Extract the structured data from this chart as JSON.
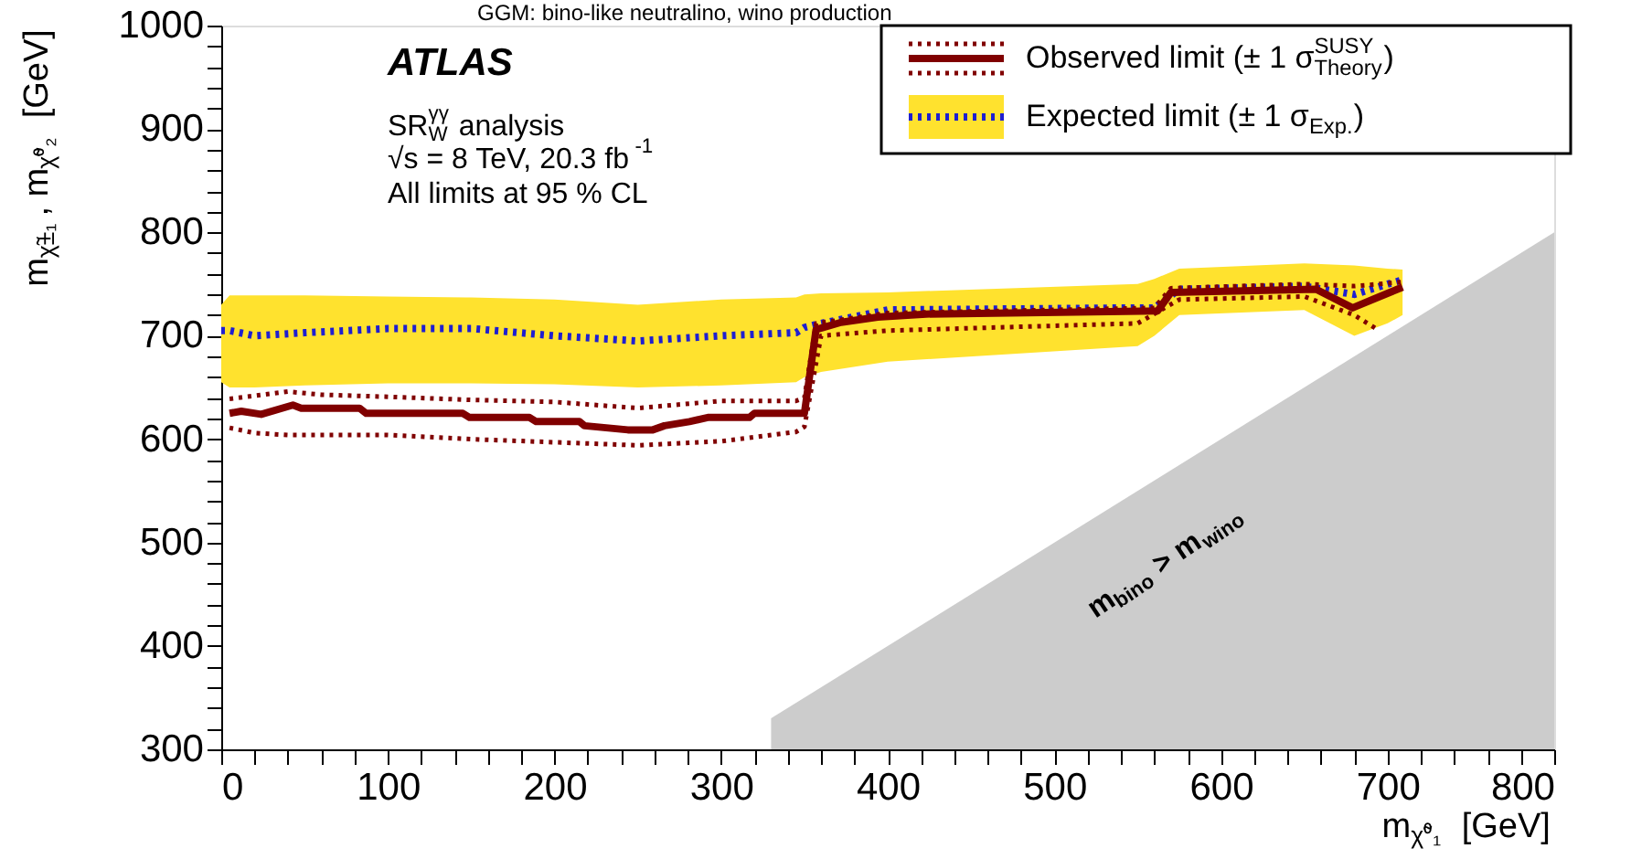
{
  "chart_data": {
    "type": "line",
    "title": "GGM: bino-like neutralino, wino production",
    "xlabel": "m$_{χ̃⁰₁}$ [GeV]",
    "ylabel": "m$_{χ̃±₁}$, m$_{χ̃⁰₂}$ [GeV]",
    "annotations": [
      "ATLAS",
      "SR$_{W}$$^{γγ}$ analysis",
      "√s = 8 TeV, 20.3 fb$^{-1}$",
      "All limits at 95 % CL",
      "m$_{bino}$ > m$_{wino}$"
    ],
    "xlim": [
      0,
      800
    ],
    "ylim": [
      300,
      1000
    ],
    "xticks": [
      0,
      {
        "value": 20,
        "label": null
      },
      {
        "value": 40,
        "label": null
      },
      {
        "value": 60,
        "label": null
      },
      {
        "value": 80,
        "label": null
      },
      100,
      {
        "value": 120,
        "label": null
      },
      {
        "value": 140,
        "label": null
      },
      {
        "value": 160,
        "label": null
      },
      {
        "value": 180,
        "label": null
      },
      200,
      {
        "value": 220,
        "label": null
      },
      {
        "value": 240,
        "label": null
      },
      {
        "value": 260,
        "label": null
      },
      {
        "value": 280,
        "label": null
      },
      300,
      {
        "value": 320,
        "label": null
      },
      {
        "value": 340,
        "label": null
      },
      {
        "value": 360,
        "label": null
      },
      {
        "value": 380,
        "label": null
      },
      400,
      {
        "value": 420,
        "label": null
      },
      {
        "value": 440,
        "label": null
      },
      {
        "value": 460,
        "label": null
      },
      {
        "value": 480,
        "label": null
      },
      500,
      {
        "value": 520,
        "label": null
      },
      {
        "value": 540,
        "label": null
      },
      {
        "value": 560,
        "label": null
      },
      {
        "value": 580,
        "label": null
      },
      600,
      {
        "value": 620,
        "label": null
      },
      {
        "value": 640,
        "label": null
      },
      {
        "value": 660,
        "label": null
      },
      {
        "value": 680,
        "label": null
      },
      700,
      {
        "value": 720,
        "label": null
      },
      {
        "value": 740,
        "label": null
      },
      {
        "value": 760,
        "label": null
      },
      {
        "value": 780,
        "label": null
      },
      800
    ],
    "yticks": [
      300,
      {
        "value": 320,
        "label": null
      },
      {
        "value": 340,
        "label": null
      },
      {
        "value": 360,
        "label": null
      },
      {
        "value": 380,
        "label": null
      },
      400,
      {
        "value": 420,
        "label": null
      },
      {
        "value": 440,
        "label": null
      },
      {
        "value": 460,
        "label": null
      },
      {
        "value": 480,
        "label": null
      },
      500,
      {
        "value": 520,
        "label": null
      },
      {
        "value": 540,
        "label": null
      },
      {
        "value": 560,
        "label": null
      },
      {
        "value": 580,
        "label": null
      },
      600,
      {
        "value": 620,
        "label": null
      },
      {
        "value": 640,
        "label": null
      },
      {
        "value": 660,
        "label": null
      },
      {
        "value": 680,
        "label": null
      },
      700,
      {
        "value": 720,
        "label": null
      },
      {
        "value": 740,
        "label": null
      },
      {
        "value": 760,
        "label": null
      },
      {
        "value": 780,
        "label": null
      },
      800,
      {
        "value": 820,
        "label": null
      },
      {
        "value": 840,
        "label": null
      },
      {
        "value": 860,
        "label": null
      },
      {
        "value": 880,
        "label": null
      },
      900,
      {
        "value": 920,
        "label": null
      },
      {
        "value": 940,
        "label": null
      },
      {
        "value": 960,
        "label": null
      },
      {
        "value": 980,
        "label": null
      },
      1000
    ],
    "grid": false,
    "legend": "top right",
    "series": [
      {
        "line_style": "dotted",
        "color": "#1f1fd0",
        "colors": [
          "#ffe22e",
          "#ffe22e",
          "#ffe22e",
          "#ffe22e",
          "#ffe22e",
          "#ffe22e",
          "#ffe22e",
          "#ffe22e",
          "#ffe22e",
          "#ffe22e",
          "#ffe22e",
          "#ffe22e",
          "#ffe22e",
          "#ffe22e",
          "#ffe22e",
          "#ffe22e",
          "#ffe22e",
          "#ffe22e",
          "#ffe22e",
          "#ffe22e"
        ],
        "name": "Expected limit (± 1 σ$_{Exp.}$)",
        "x": [
          0,
          5,
          20,
          50,
          100,
          150,
          200,
          250,
          300,
          345,
          350,
          360,
          400,
          550,
          560,
          575,
          650,
          680,
          700,
          709
        ],
        "values": [
          705,
          705,
          700,
          703,
          707,
          707,
          700,
          695,
          700,
          703,
          708,
          712,
          725,
          727,
          727,
          745,
          748,
          740,
          750,
          754
        ],
        "lower": [
          655,
          650,
          650,
          652,
          654,
          654,
          653,
          650,
          652,
          655,
          660,
          665,
          675,
          690,
          700,
          720,
          725,
          700,
          712,
          720
        ],
        "upper": [
          730,
          739,
          739,
          739,
          738,
          737,
          735,
          730,
          735,
          737,
          740,
          741,
          742,
          750,
          755,
          765,
          770,
          768,
          765,
          764
        ]
      },
      {
        "line_style": "dotted",
        "color": "#800000",
        "x": [
          5,
          20,
          40,
          60,
          100,
          150,
          200,
          250,
          300,
          345,
          350,
          357,
          400,
          560,
          570,
          650,
          680,
          709
        ],
        "values": [
          639,
          642,
          646,
          643,
          641,
          638,
          636,
          630,
          637,
          637,
          640,
          712,
          722,
          727,
          746,
          750,
          748,
          752
        ]
      },
      {
        "line_style": "dotted",
        "color": "#800000",
        "x": [
          5,
          20,
          40,
          100,
          150,
          200,
          250,
          300,
          345,
          350,
          360,
          400,
          550,
          575,
          650,
          680,
          694
        ],
        "values": [
          611,
          606,
          604,
          604,
          600,
          597,
          594,
          598,
          607,
          612,
          700,
          705,
          712,
          735,
          738,
          720,
          706
        ]
      },
      {
        "line_style": "solid",
        "color": "#800000",
        "name": "Observed limit (± 1 σ$^{SUSY}$$_{Theory}$)",
        "x": [
          5,
          12,
          24,
          43,
          48,
          83,
          87,
          145,
          149,
          185,
          189,
          215,
          218,
          244,
          259,
          266,
          281,
          292,
          317,
          320,
          350,
          357,
          372,
          394,
          423,
          562,
          570,
          657,
          679,
          694,
          709
        ],
        "values": [
          625,
          627,
          624,
          633,
          630,
          630,
          625,
          625,
          621,
          621,
          617,
          617,
          613,
          609,
          609,
          613,
          617,
          621,
          621,
          625,
          625,
          706,
          713,
          718,
          721,
          724,
          742,
          745,
          727,
          737,
          747
        ]
      },
      {
        "type": "area",
        "color": "#cccccc",
        "x": [
          330,
          800
        ],
        "values": [
          330,
          800
        ]
      }
    ]
  }
}
